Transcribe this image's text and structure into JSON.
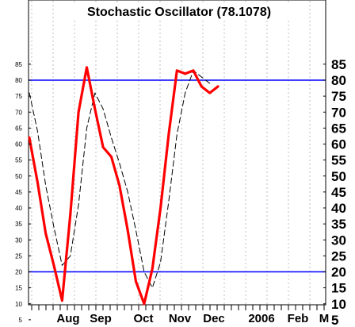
{
  "chart_data": {
    "type": "line",
    "title": "Stochastic Oscillator (78.1078)",
    "ylim": [
      0,
      90
    ],
    "yticks_left": [
      5,
      10,
      15,
      20,
      25,
      30,
      35,
      40,
      45,
      50,
      55,
      60,
      65,
      70,
      75,
      80,
      85
    ],
    "yticks_right": [
      5,
      10,
      15,
      20,
      25,
      30,
      35,
      40,
      45,
      50,
      55,
      60,
      65,
      70,
      75,
      80,
      85
    ],
    "x_labels": [
      "Aug",
      "Sep",
      "Oct",
      "Nov",
      "Dec",
      "2006",
      "Feb",
      "M"
    ],
    "reference_lines": [
      20,
      80
    ],
    "grid": true,
    "series": [
      {
        "style": "solid",
        "color": "#ff0000",
        "points": [
          [
            0,
            62
          ],
          [
            1,
            48
          ],
          [
            2,
            32
          ],
          [
            3,
            22
          ],
          [
            4,
            11
          ],
          [
            5,
            38
          ],
          [
            6,
            70
          ],
          [
            7,
            84
          ],
          [
            8,
            71
          ],
          [
            9,
            59
          ],
          [
            10,
            56
          ],
          [
            11,
            47
          ],
          [
            12,
            33
          ],
          [
            13,
            17
          ],
          [
            14,
            10
          ],
          [
            15,
            21
          ],
          [
            16,
            40
          ],
          [
            17,
            63
          ],
          [
            18,
            83
          ],
          [
            19,
            82
          ],
          [
            20,
            83
          ],
          [
            21,
            78
          ],
          [
            22,
            76
          ],
          [
            23,
            78
          ]
        ]
      },
      {
        "style": "dashed",
        "color": "#000000",
        "points": [
          [
            0,
            76
          ],
          [
            1,
            64
          ],
          [
            2,
            47
          ],
          [
            3,
            34
          ],
          [
            4,
            22
          ],
          [
            5,
            25
          ],
          [
            6,
            41
          ],
          [
            7,
            65
          ],
          [
            8,
            76
          ],
          [
            9,
            71
          ],
          [
            10,
            62
          ],
          [
            11,
            54
          ],
          [
            12,
            45
          ],
          [
            13,
            33
          ],
          [
            14,
            20
          ],
          [
            15,
            15
          ],
          [
            16,
            23
          ],
          [
            17,
            42
          ],
          [
            18,
            63
          ],
          [
            19,
            76
          ],
          [
            20,
            83
          ],
          [
            21,
            81
          ],
          [
            22,
            79
          ]
        ]
      }
    ]
  }
}
